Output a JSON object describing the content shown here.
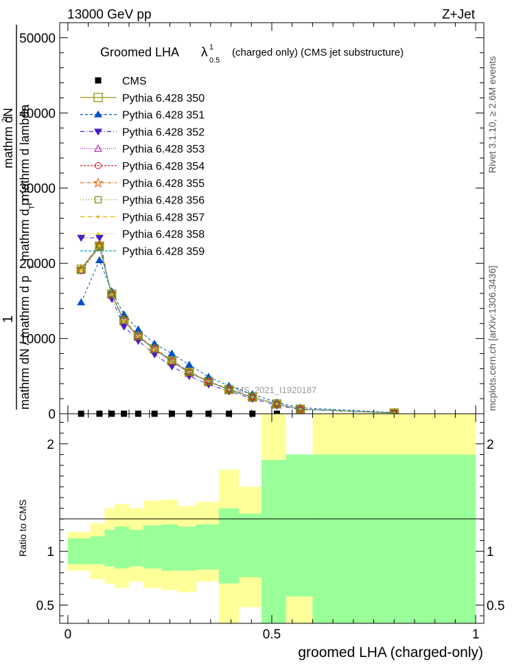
{
  "header": {
    "left": "13000 GeV pp",
    "right": "Z+Jet"
  },
  "side_labels": {
    "rivet": "Rivet 3.1.10, ≥ 2.6M events",
    "mcplots": "mcplots.cern.ch [arXiv:1306.3436]"
  },
  "chart_data": [
    {
      "type": "line",
      "title_main": "Groomed LHA",
      "title_lambda": "λ",
      "title_sup": "1",
      "title_sub": "0.5",
      "title_rest": "(charged only) (CMS jet substructure)",
      "ylabel_parts": [
        "1",
        "mathrm dN / mathrm d p",
        "T",
        "mathrm d p",
        "T",
        "mathrm d lambda",
        "mathrm d",
        "2",
        "N"
      ],
      "ylim": [
        0,
        52000
      ],
      "xlim": [
        -0.02,
        1.02
      ],
      "y_ticks": [
        0,
        10000,
        20000,
        30000,
        40000,
        50000
      ],
      "y_tick_labels": [
        "0",
        "10000",
        "20000",
        "30000",
        "40000",
        "50000"
      ],
      "watermark": "CMS_2021_I1920187",
      "x": [
        0.0325,
        0.0775,
        0.1075,
        0.1375,
        0.1725,
        0.2125,
        0.255,
        0.2975,
        0.345,
        0.395,
        0.4525,
        0.5125,
        0.57,
        0.8
      ],
      "series": [
        {
          "name": "CMS",
          "color": "#000000",
          "marker": "square-filled",
          "dash": "",
          "values": [
            0,
            0,
            0,
            0,
            0,
            0,
            0,
            0,
            0,
            0,
            0,
            0,
            null,
            null
          ]
        },
        {
          "name": "Pythia 6.428 350",
          "color": "#8c8c00",
          "marker": "square-open",
          "dash": "",
          "values": [
            19200,
            22300,
            15900,
            12400,
            10300,
            8600,
            7000,
            5500,
            4300,
            3200,
            2200,
            1300,
            600,
            100
          ]
        },
        {
          "name": "Pythia 6.428 351",
          "color": "#0050c8",
          "marker": "triangle-up-filled",
          "dash": "4,3",
          "values": [
            14800,
            20400,
            16300,
            13200,
            11200,
            9300,
            8000,
            6500,
            4900,
            3700,
            2600,
            1500,
            800,
            150
          ]
        },
        {
          "name": "Pythia 6.428 352",
          "color": "#4a1fbf",
          "marker": "triangle-down-filled",
          "dash": "6,3,1,3",
          "values": [
            23400,
            23400,
            15300,
            11600,
            9700,
            7900,
            6300,
            5000,
            3900,
            3000,
            2000,
            1100,
            550,
            100
          ]
        },
        {
          "name": "Pythia 6.428 353",
          "color": "#b000b0",
          "marker": "triangle-up-open",
          "dash": "1,2",
          "values": [
            19100,
            22400,
            15800,
            12300,
            10200,
            8500,
            6900,
            5400,
            4200,
            3200,
            2200,
            1300,
            620,
            110
          ]
        },
        {
          "name": "Pythia 6.428 354",
          "color": "#d0102a",
          "marker": "circle-open",
          "dash": "3,2",
          "values": [
            19000,
            22200,
            15800,
            12400,
            10300,
            8600,
            7000,
            5500,
            4300,
            3200,
            2200,
            1300,
            600,
            100
          ]
        },
        {
          "name": "Pythia 6.428 355",
          "color": "#e05a00",
          "marker": "star-open",
          "dash": "5,2,1,2",
          "values": [
            19300,
            22500,
            16000,
            12500,
            10400,
            8700,
            7100,
            5600,
            4300,
            3300,
            2200,
            1300,
            620,
            100
          ]
        },
        {
          "name": "Pythia 6.428 356",
          "color": "#6b8c00",
          "marker": "square-open-small",
          "dash": "1,3",
          "values": [
            19100,
            22300,
            15900,
            12400,
            10300,
            8600,
            7000,
            5500,
            4300,
            3200,
            2200,
            1300,
            600,
            100
          ]
        },
        {
          "name": "Pythia 6.428 357",
          "color": "#e0b000",
          "marker": "dot",
          "dash": "6,2,1,2",
          "values": [
            19200,
            22400,
            15900,
            12400,
            10300,
            8600,
            7000,
            5500,
            4300,
            3200,
            2200,
            1300,
            600,
            100
          ]
        },
        {
          "name": "Pythia 6.428 358",
          "color": "#c8d200",
          "marker": "dot",
          "dash": "1,2",
          "values": [
            19100,
            22300,
            15900,
            12400,
            10300,
            8600,
            7000,
            5500,
            4300,
            3200,
            2200,
            1300,
            600,
            100
          ]
        },
        {
          "name": "Pythia 6.428 359",
          "color": "#00a0a0",
          "marker": "none",
          "dash": "4,2",
          "values": [
            19300,
            22200,
            15800,
            12300,
            10300,
            8600,
            7000,
            5500,
            4300,
            3200,
            2200,
            1300,
            600,
            100
          ]
        }
      ]
    },
    {
      "type": "area",
      "ylabel": "Ratio to CMS",
      "xlabel": "groomed LHA (charged-only)",
      "ylim": [
        0.33,
        2.28
      ],
      "xlim": [
        -0.02,
        1.02
      ],
      "y_ticks": [
        0.5,
        1,
        2
      ],
      "y_tick_labels": [
        "0.5",
        "1",
        "2"
      ],
      "x_ticks": [
        0,
        0.5,
        1
      ],
      "x_tick_labels": [
        "0",
        "0.5",
        "1"
      ],
      "band_colors": {
        "outer": "#ffff99",
        "inner": "#99ff99"
      },
      "bin_edges": [
        0,
        0.055,
        0.09,
        0.115,
        0.15,
        0.185,
        0.23,
        0.27,
        0.315,
        0.37,
        0.42,
        0.475,
        0.535,
        0.6,
        1.0
      ],
      "outer_band": {
        "low": [
          0.82,
          0.74,
          0.7,
          0.66,
          0.72,
          0.66,
          0.64,
          0.62,
          0.72,
          0.33,
          0.48,
          0.33,
          0.33,
          0.33
        ],
        "high": [
          1.18,
          1.26,
          1.4,
          1.44,
          1.4,
          1.47,
          1.48,
          1.42,
          1.46,
          1.76,
          1.6,
          2.28,
          1.6,
          2.28
        ]
      },
      "inner_band": {
        "low": [
          0.88,
          0.88,
          0.86,
          0.84,
          0.86,
          0.84,
          0.82,
          0.82,
          0.83,
          0.7,
          0.76,
          0.33,
          0.58,
          0.33
        ],
        "high": [
          1.12,
          1.14,
          1.2,
          1.23,
          1.2,
          1.24,
          1.25,
          1.23,
          1.25,
          1.4,
          1.35,
          1.85,
          1.9,
          1.9
        ]
      }
    }
  ]
}
